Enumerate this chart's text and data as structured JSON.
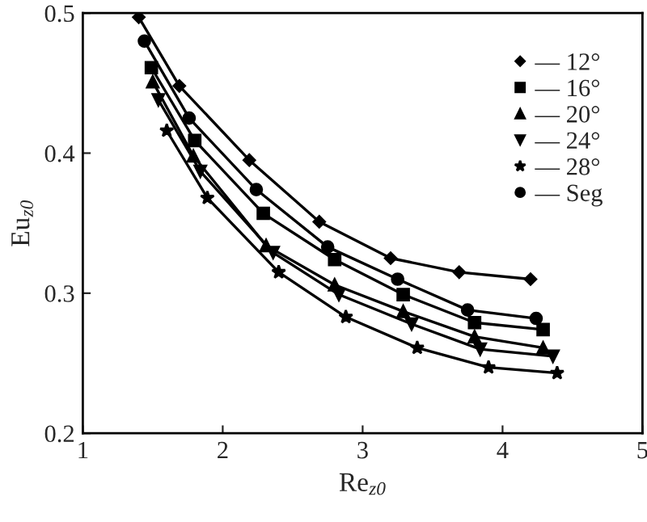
{
  "chart_data": {
    "type": "line",
    "xlabel": "Re$_{z0}$",
    "ylabel": "Eu$_{z0}$",
    "xlim": [
      1,
      5
    ],
    "xticks": [
      1,
      2,
      3,
      4,
      5
    ],
    "ylim": [
      0.2,
      0.5
    ],
    "yticks": [
      0.2,
      0.3,
      0.4,
      0.5
    ],
    "grid": false,
    "legend": "top right",
    "series": [
      {
        "name": "— 12°",
        "color": "#000000",
        "marker": "diamond",
        "x": [
          1.4,
          1.69,
          2.19,
          2.69,
          3.2,
          3.69,
          4.2
        ],
        "values": [
          0.497,
          0.448,
          0.395,
          0.351,
          0.325,
          0.315,
          0.31
        ]
      },
      {
        "name": "— 16°",
        "color": "#000000",
        "marker": "square",
        "x": [
          1.49,
          1.8,
          2.29,
          2.8,
          3.29,
          3.8,
          4.29
        ],
        "values": [
          0.461,
          0.409,
          0.357,
          0.324,
          0.299,
          0.279,
          0.274
        ]
      },
      {
        "name": "— 20°",
        "color": "#000000",
        "marker": "triangle",
        "x": [
          1.5,
          1.79,
          2.31,
          2.8,
          3.29,
          3.8,
          4.29
        ],
        "values": [
          0.451,
          0.398,
          0.334,
          0.306,
          0.287,
          0.269,
          0.261
        ]
      },
      {
        "name": "— 24°",
        "color": "#000000",
        "marker": "triangle_down",
        "x": [
          1.54,
          1.84,
          2.36,
          2.83,
          3.35,
          3.84,
          4.36
        ],
        "values": [
          0.438,
          0.387,
          0.329,
          0.299,
          0.278,
          0.26,
          0.255
        ]
      },
      {
        "name": "— 28°",
        "color": "#000000",
        "marker": "star",
        "x": [
          1.6,
          1.89,
          2.4,
          2.88,
          3.39,
          3.9,
          4.39
        ],
        "values": [
          0.416,
          0.368,
          0.315,
          0.283,
          0.261,
          0.247,
          0.243
        ]
      },
      {
        "name": "— Seg",
        "color": "#000000",
        "marker": "circle",
        "x": [
          1.44,
          1.76,
          2.24,
          2.75,
          3.25,
          3.75,
          4.24
        ],
        "values": [
          0.48,
          0.425,
          0.374,
          0.333,
          0.31,
          0.288,
          0.282
        ]
      }
    ]
  }
}
